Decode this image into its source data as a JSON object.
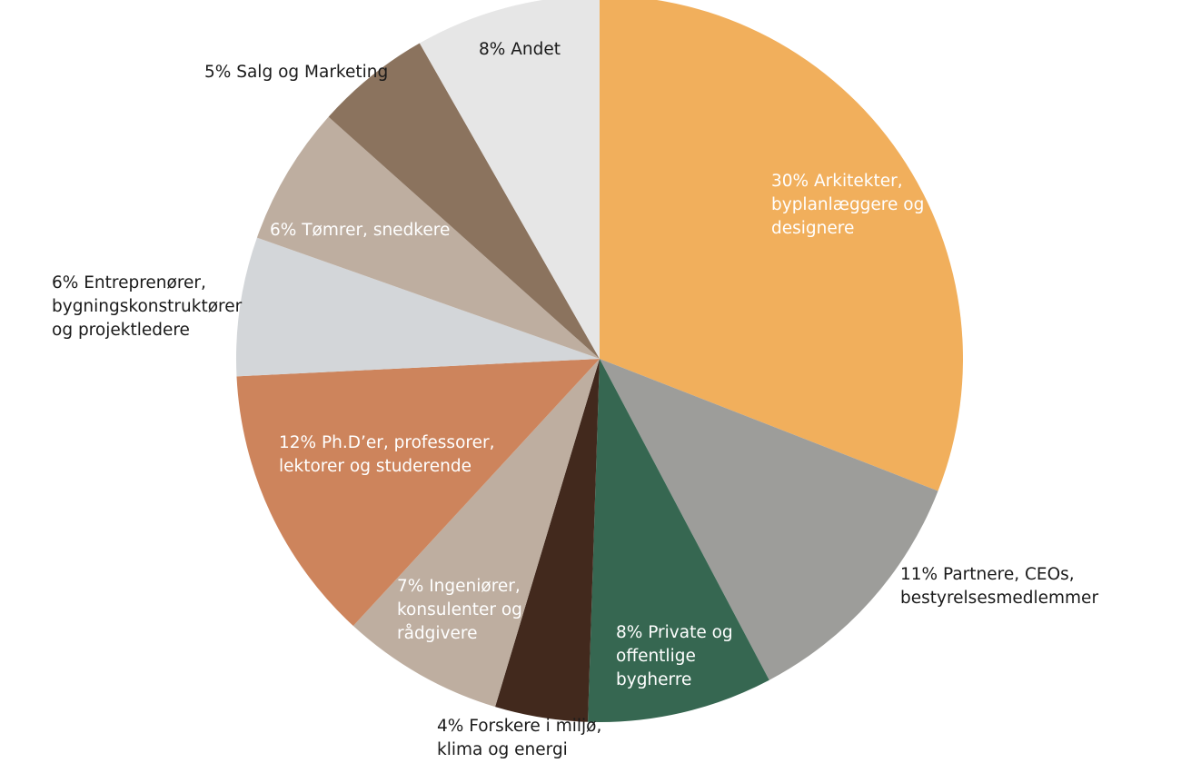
{
  "chart_data": {
    "type": "pie",
    "title": "",
    "slices": [
      {
        "value": 30,
        "color": "#F1AF5C",
        "label_lines": [
          "30% Arkitekter,",
          "byplanlæggere og",
          "designere"
        ]
      },
      {
        "value": 11,
        "color": "#9D9D9A",
        "label_lines": [
          "11% Partnere, CEOs,",
          "bestyrelsesmedlemmer"
        ]
      },
      {
        "value": 8,
        "color": "#366751",
        "label_lines": [
          "8% Private og",
          "offentlige",
          "bygherre"
        ]
      },
      {
        "value": 4,
        "color": "#42291D",
        "label_lines": [
          "4% Forskere i miljø,",
          "klima og energi"
        ]
      },
      {
        "value": 7,
        "color": "#BEAEA0",
        "label_lines": [
          "7% Ingeniører,",
          "konsulenter og",
          "rådgivere"
        ]
      },
      {
        "value": 12,
        "color": "#CD845C",
        "label_lines": [
          "12% Ph.D’er, professorer,",
          "lektorer og studerende"
        ]
      },
      {
        "value": 6,
        "color": "#D3D6D9",
        "label_lines": [
          "6% Entreprenører,",
          "bygningskonstruktører",
          "og projektledere"
        ]
      },
      {
        "value": 6,
        "color": "#BEAEA0",
        "label_lines": [
          "6% Tømrer, snedkere"
        ]
      },
      {
        "value": 5,
        "color": "#8B735E",
        "label_lines": [
          "5% Salg og Marketing"
        ]
      },
      {
        "value": 8,
        "color": "#E6E6E6",
        "label_lines": [
          "8% Andet"
        ]
      }
    ]
  }
}
